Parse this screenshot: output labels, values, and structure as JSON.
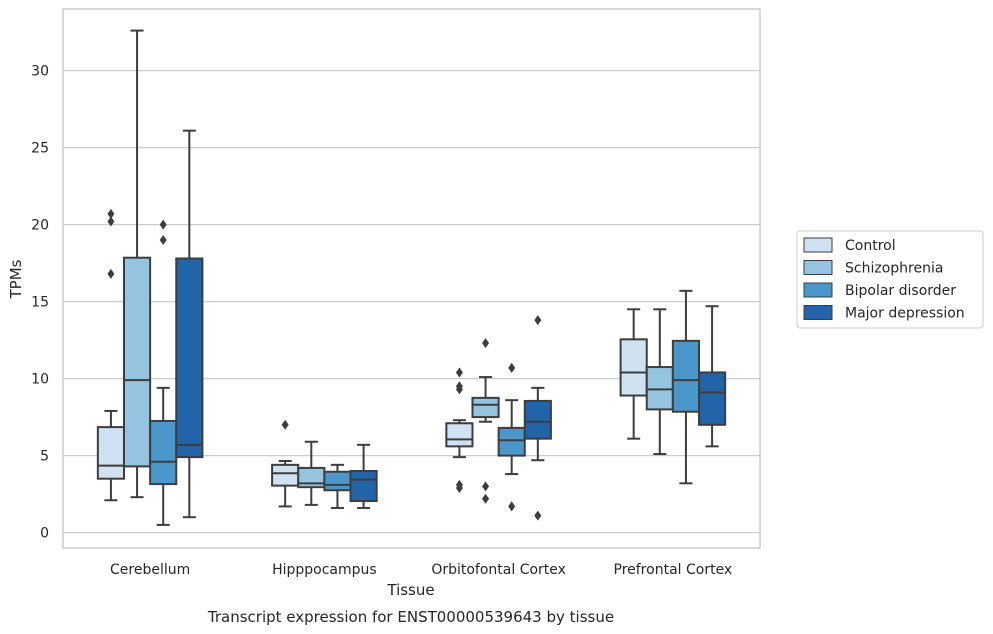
{
  "chart_data": {
    "type": "box",
    "xlabel": "Tissue",
    "ylabel": "TPMs",
    "caption": "Transcript expression for ENST00000539643 by tissue",
    "categories": [
      "Cerebellum",
      "Hipppocampus",
      "Orbitofontal Cortex",
      "Prefrontal Cortex"
    ],
    "ylim": [
      -1.0,
      34.0
    ],
    "yticks": [
      0,
      5,
      10,
      15,
      20,
      25,
      30
    ],
    "grid": "horizontal",
    "legend_position": "right",
    "series": [
      {
        "name": "Control",
        "color": "#d0e1f2",
        "boxes": [
          {
            "whisker_low": 2.1,
            "q1": 3.5,
            "median": 4.35,
            "q3": 6.85,
            "whisker_high": 7.9,
            "outliers": [
              16.8,
              20.2,
              20.7
            ]
          },
          {
            "whisker_low": 1.7,
            "q1": 3.05,
            "median": 3.85,
            "q3": 4.4,
            "whisker_high": 4.65,
            "outliers": [
              7.0
            ]
          },
          {
            "whisker_low": 4.9,
            "q1": 5.6,
            "median": 6.05,
            "q3": 7.1,
            "whisker_high": 7.3,
            "outliers": [
              2.9,
              3.1,
              9.3,
              9.5,
              10.4
            ]
          },
          {
            "whisker_low": 6.1,
            "q1": 8.9,
            "median": 10.4,
            "q3": 12.55,
            "whisker_high": 14.5,
            "outliers": []
          }
        ]
      },
      {
        "name": "Schizophrenia",
        "color": "#94c4df",
        "boxes": [
          {
            "whisker_low": 2.3,
            "q1": 4.3,
            "median": 9.9,
            "q3": 17.85,
            "whisker_high": 32.6,
            "outliers": []
          },
          {
            "whisker_low": 1.8,
            "q1": 2.95,
            "median": 3.2,
            "q3": 4.2,
            "whisker_high": 5.9,
            "outliers": []
          },
          {
            "whisker_low": 7.2,
            "q1": 7.5,
            "median": 8.3,
            "q3": 8.75,
            "whisker_high": 10.1,
            "outliers": [
              2.2,
              3.0,
              12.3
            ]
          },
          {
            "whisker_low": 5.1,
            "q1": 8.0,
            "median": 9.3,
            "q3": 10.75,
            "whisker_high": 14.5,
            "outliers": []
          }
        ]
      },
      {
        "name": "Bipolar disorder",
        "color": "#4a98c9",
        "boxes": [
          {
            "whisker_low": 0.5,
            "q1": 3.15,
            "median": 4.6,
            "q3": 7.25,
            "whisker_high": 9.4,
            "outliers": [
              19.0,
              20.0
            ]
          },
          {
            "whisker_low": 1.6,
            "q1": 2.75,
            "median": 3.1,
            "q3": 3.95,
            "whisker_high": 4.4,
            "outliers": []
          },
          {
            "whisker_low": 3.8,
            "q1": 5.0,
            "median": 6.0,
            "q3": 6.8,
            "whisker_high": 8.6,
            "outliers": [
              1.7,
              10.7
            ]
          },
          {
            "whisker_low": 3.2,
            "q1": 7.85,
            "median": 9.9,
            "q3": 12.45,
            "whisker_high": 15.7,
            "outliers": []
          }
        ]
      },
      {
        "name": "Major depression",
        "color": "#2264a8",
        "boxes": [
          {
            "whisker_low": 1.0,
            "q1": 4.9,
            "median": 5.7,
            "q3": 17.8,
            "whisker_high": 26.1,
            "outliers": []
          },
          {
            "whisker_low": 1.6,
            "q1": 2.05,
            "median": 3.45,
            "q3": 4.0,
            "whisker_high": 5.7,
            "outliers": []
          },
          {
            "whisker_low": 4.7,
            "q1": 6.1,
            "median": 7.2,
            "q3": 8.55,
            "whisker_high": 9.4,
            "outliers": [
              1.1,
              13.8
            ]
          },
          {
            "whisker_low": 5.6,
            "q1": 7.0,
            "median": 9.1,
            "q3": 10.4,
            "whisker_high": 14.7,
            "outliers": []
          }
        ]
      }
    ]
  }
}
